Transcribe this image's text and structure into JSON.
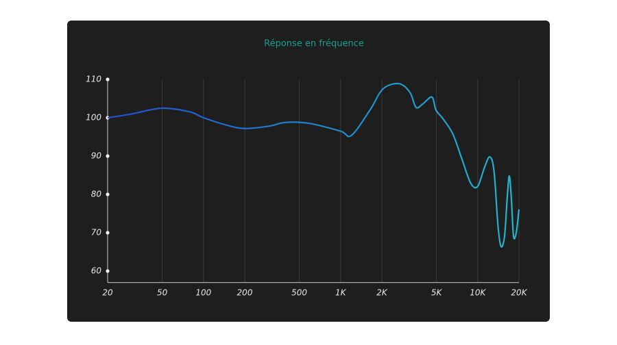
{
  "chart_data": {
    "type": "line",
    "title": "Réponse en fréquence",
    "x": [
      20,
      30,
      50,
      80,
      100,
      150,
      200,
      300,
      400,
      600,
      1000,
      1200,
      1645,
      2036,
      2667,
      3206,
      3548,
      3981,
      4634,
      4960,
      5510,
      6560,
      7660,
      8900,
      10000,
      11200,
      12260,
      13160,
      14060,
      14800,
      15700,
      16400,
      17000,
      17600,
      18250,
      19100,
      20000
    ],
    "series": [
      {
        "colors": [
          "#1f4fd0",
          "#22b8cc"
        ],
        "values": [
          100,
          101,
          102.5,
          101.5,
          100,
          98,
          97.2,
          97.8,
          98.8,
          98.5,
          96.5,
          95.4,
          102.1,
          107.5,
          108.9,
          106.6,
          102.7,
          103.6,
          105.4,
          102,
          100,
          95.9,
          89.3,
          82.9,
          82.1,
          87,
          89.8,
          86,
          71.8,
          66.4,
          69.1,
          78.9,
          84.8,
          78.9,
          69.1,
          70,
          76.1
        ]
      }
    ],
    "xlog": true,
    "xlim": [
      20,
      20000
    ],
    "xticks": [
      20,
      50,
      100,
      200,
      500,
      {
        "value": 1000,
        "label": "1K"
      },
      {
        "value": 2000,
        "label": "2K"
      },
      {
        "value": 5000,
        "label": "5K"
      },
      {
        "value": 10000,
        "label": "10K"
      },
      {
        "value": 20000,
        "label": "20K"
      }
    ],
    "ylim": [
      57,
      110
    ],
    "yticks": [
      60,
      70,
      80,
      90,
      100,
      110
    ],
    "grid": true
  }
}
